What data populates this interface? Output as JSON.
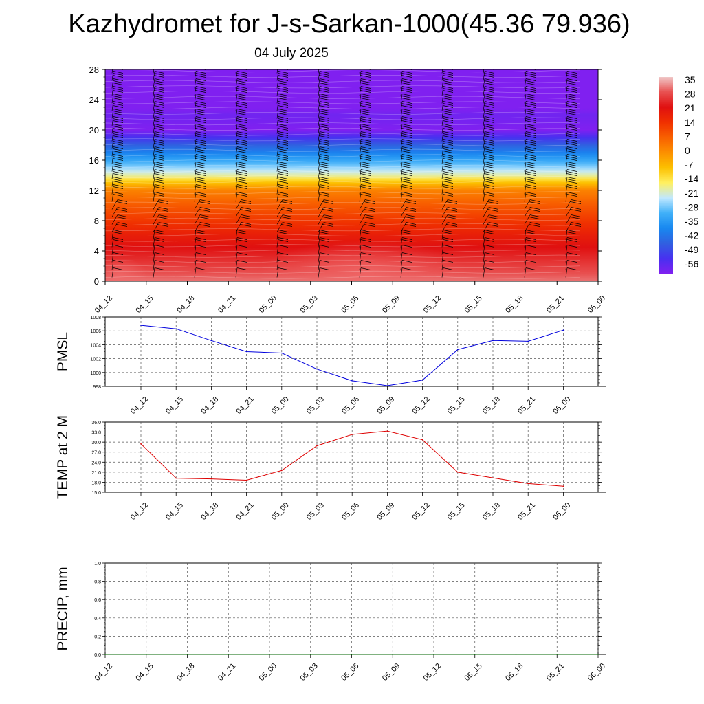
{
  "title": "Kazhydromet for J-s-Sarkan-1000(45.36 79.936)",
  "subtitle": "04 July 2025",
  "time_labels": [
    "04_12",
    "04_15",
    "04_18",
    "04_21",
    "05_00",
    "05_03",
    "05_06",
    "05_09",
    "05_12",
    "05_15",
    "05_18",
    "05_21",
    "06_00"
  ],
  "chart_data": [
    {
      "type": "heatmap",
      "name": "upper-air-section",
      "x": [
        "04_12",
        "04_15",
        "04_18",
        "04_21",
        "05_00",
        "05_03",
        "05_06",
        "05_09",
        "05_12",
        "05_15",
        "05_18",
        "05_21",
        "06_00"
      ],
      "yticks": [
        0,
        4,
        8,
        12,
        16,
        20,
        24,
        28
      ],
      "ylim": [
        0,
        28
      ],
      "temp_profile": {
        "levels": [
          0,
          2,
          4,
          6,
          8,
          10,
          12,
          13,
          14,
          16,
          18,
          20,
          22,
          24,
          26,
          28
        ],
        "values": [
          30,
          26,
          22,
          18,
          13,
          8,
          2,
          -7,
          -17,
          -30,
          -42,
          -56,
          -54,
          -60,
          -62,
          -62
        ]
      },
      "colorbar": {
        "labels": [
          "35",
          "28",
          "21",
          "14",
          "7",
          "0",
          "-7",
          "-14",
          "-21",
          "-28",
          "-35",
          "-42",
          "-49",
          "-56"
        ],
        "colors": [
          "#f0c8c8",
          "#e85050",
          "#e01010",
          "#f03000",
          "#f86000",
          "#fc9000",
          "#fcc000",
          "#fff060",
          "#c0e8ff",
          "#40b0f8",
          "#1888f0",
          "#3060e0",
          "#4830f0",
          "#8020f0"
        ]
      },
      "winds": "barbs"
    },
    {
      "type": "line",
      "name": "pmsl",
      "ylabel": "PMSL",
      "x": [
        "04_12",
        "04_15",
        "04_18",
        "04_21",
        "05_00",
        "05_03",
        "05_06",
        "05_09",
        "05_12",
        "05_15",
        "05_18",
        "05_21",
        "06_00"
      ],
      "values": [
        1006.8,
        1006.3,
        1004.6,
        1003.0,
        1002.8,
        1000.5,
        998.8,
        998.1,
        998.9,
        1003.3,
        1004.6,
        1004.5,
        1006.1
      ],
      "ylim": [
        998,
        1008
      ],
      "yticks": [
        "998",
        "1000",
        "1002",
        "1004",
        "1006",
        "1008"
      ],
      "color": "#0000dd"
    },
    {
      "type": "line",
      "name": "temp-2m",
      "ylabel": "TEMP at 2 M",
      "x": [
        "04_12",
        "04_15",
        "04_18",
        "04_21",
        "05_00",
        "05_03",
        "05_06",
        "05_09",
        "05_12",
        "05_15",
        "05_18",
        "05_21",
        "06_00"
      ],
      "values": [
        29.5,
        19.2,
        19.0,
        18.6,
        21.5,
        28.9,
        32.3,
        33.3,
        30.7,
        21.0,
        19.3,
        17.6,
        16.8
      ],
      "ylim": [
        15,
        36
      ],
      "yticks": [
        "15.0",
        "18.0",
        "21.0",
        "24.0",
        "27.0",
        "30.0",
        "33.0",
        "36.0"
      ],
      "color": "#dd0000"
    },
    {
      "type": "line",
      "name": "precip",
      "ylabel": "PRECIP, mm",
      "x": [
        "04_12",
        "04_15",
        "04_18",
        "04_21",
        "05_00",
        "05_03",
        "05_06",
        "05_09",
        "05_12",
        "05_15",
        "05_18",
        "05_21",
        "06_00"
      ],
      "values": [
        0,
        0,
        0,
        0,
        0,
        0,
        0,
        0,
        0,
        0,
        0,
        0,
        0
      ],
      "ylim": [
        0,
        1
      ],
      "yticks": [
        "0.0",
        "0.2",
        "0.4",
        "0.6",
        "0.8",
        "1.0"
      ],
      "color": "#006600"
    }
  ]
}
